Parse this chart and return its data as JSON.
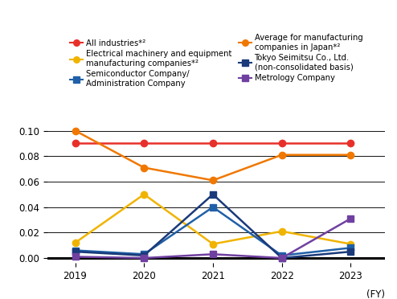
{
  "years": [
    2019,
    2020,
    2021,
    2022,
    2023
  ],
  "series_order": [
    "all_industries",
    "electrical_machinery",
    "semiconductor",
    "avg_manufacturing",
    "tokyo_seimitsu",
    "metrology"
  ],
  "series": {
    "all_industries": {
      "values": [
        0.09,
        0.09,
        0.09,
        0.09,
        0.09
      ],
      "color": "#e8302a",
      "marker": "o",
      "markersize": 6,
      "linewidth": 1.8,
      "label": "All industries*²",
      "linestyle": "-"
    },
    "electrical_machinery": {
      "values": [
        0.012,
        0.05,
        0.011,
        0.021,
        0.011
      ],
      "color": "#f0b400",
      "marker": "o",
      "markersize": 6,
      "linewidth": 1.8,
      "label": "Electrical machinery and equipment\nmanufacturing companies*²",
      "linestyle": "-"
    },
    "semiconductor": {
      "values": [
        0.006,
        0.003,
        0.04,
        0.002,
        0.008
      ],
      "color": "#2060a8",
      "marker": "s",
      "markersize": 6,
      "linewidth": 1.8,
      "label": "Semiconductor Company/\nAdministration Company",
      "linestyle": "-"
    },
    "avg_manufacturing": {
      "values": [
        0.1,
        0.071,
        0.061,
        0.081,
        0.081
      ],
      "color": "#f07800",
      "marker": "o",
      "markersize": 6,
      "linewidth": 1.8,
      "label": "Average for manufacturing\ncompanies in Japan*²",
      "linestyle": "-"
    },
    "tokyo_seimitsu": {
      "values": [
        0.005,
        0.002,
        0.05,
        0.0,
        0.005
      ],
      "color": "#1a3a7a",
      "marker": "s",
      "markersize": 6,
      "linewidth": 1.8,
      "label": "Tokyo Seimitsu Co., Ltd.\n(non-consolidated basis)",
      "linestyle": "-"
    },
    "metrology": {
      "values": [
        0.001,
        0.0,
        0.003,
        0.0,
        0.031
      ],
      "color": "#7040a0",
      "marker": "s",
      "markersize": 6,
      "linewidth": 1.8,
      "label": "Metrology Company",
      "linestyle": "-"
    }
  },
  "ylim": [
    -0.004,
    0.112
  ],
  "yticks": [
    0.0,
    0.02,
    0.04,
    0.06,
    0.08,
    0.1
  ],
  "ytick_labels": [
    "0.00",
    "0.02",
    "0.04",
    "0.06",
    "0.08",
    "0.10"
  ],
  "background_color": "#ffffff",
  "grid_color": "#333333",
  "legend_fontsize": 7.2,
  "tick_fontsize": 8.5,
  "fy_label": "(FY)"
}
